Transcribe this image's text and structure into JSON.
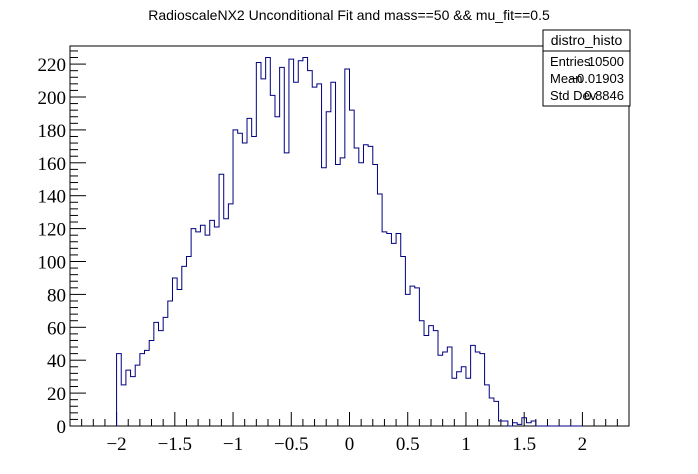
{
  "chart_data": {
    "type": "bar",
    "title": "RadioscaleNX2 Unconditional Fit and mass==50 && mu_fit==0.5",
    "xlabel": "",
    "ylabel": "",
    "xlim": [
      -2.4,
      2.4
    ],
    "ylim": [
      0,
      231
    ],
    "bin_width": 0.04,
    "first_bin_low_edge": -2.0,
    "xticks": [
      {
        "value": -2,
        "label": "−2"
      },
      {
        "value": -1.5,
        "label": "−1.5"
      },
      {
        "value": -1,
        "label": "−1"
      },
      {
        "value": -0.5,
        "label": "−0.5"
      },
      {
        "value": 0,
        "label": "0"
      },
      {
        "value": 0.5,
        "label": "0.5"
      },
      {
        "value": 1,
        "label": "1"
      },
      {
        "value": 1.5,
        "label": "1.5"
      },
      {
        "value": 2,
        "label": "2"
      }
    ],
    "yticks": [
      {
        "value": 0,
        "label": "0"
      },
      {
        "value": 20,
        "label": "20"
      },
      {
        "value": 40,
        "label": "40"
      },
      {
        "value": 60,
        "label": "60"
      },
      {
        "value": 80,
        "label": "80"
      },
      {
        "value": 100,
        "label": "100"
      },
      {
        "value": 120,
        "label": "120"
      },
      {
        "value": 140,
        "label": "140"
      },
      {
        "value": 160,
        "label": "160"
      },
      {
        "value": 180,
        "label": "180"
      },
      {
        "value": 200,
        "label": "200"
      },
      {
        "value": 220,
        "label": "220"
      }
    ],
    "series": [
      {
        "values": [
          44,
          25,
          34,
          30,
          37,
          44,
          46,
          52,
          63,
          58,
          66,
          76,
          90,
          83,
          97,
          103,
          120,
          118,
          122,
          116,
          125,
          121,
          153,
          126,
          135,
          180,
          178,
          172,
          187,
          176,
          221,
          211,
          224,
          201,
          188,
          218,
          166,
          223,
          209,
          222,
          224,
          216,
          206,
          208,
          157,
          191,
          209,
          159,
          163,
          217,
          192,
          169,
          160,
          171,
          170,
          159,
          141,
          118,
          117,
          111,
          117,
          103,
          80,
          85,
          84,
          64,
          55,
          61,
          58,
          43,
          45,
          48,
          29,
          33,
          36,
          29,
          49,
          45,
          44,
          25,
          17,
          15,
          3,
          3,
          0,
          2,
          1,
          5,
          2,
          3,
          0,
          0,
          0,
          0,
          0,
          0,
          0,
          0,
          0,
          0
        ]
      }
    ],
    "line_color": "#000080",
    "grid": false,
    "stats_box": {
      "title": "distro_histo",
      "placement": "top-right",
      "rows": [
        {
          "label": "Entries",
          "value": "10500"
        },
        {
          "label": "Mean",
          "value": "−0.01903"
        },
        {
          "label": "Std Dev",
          "value": "0.8846"
        }
      ]
    }
  }
}
